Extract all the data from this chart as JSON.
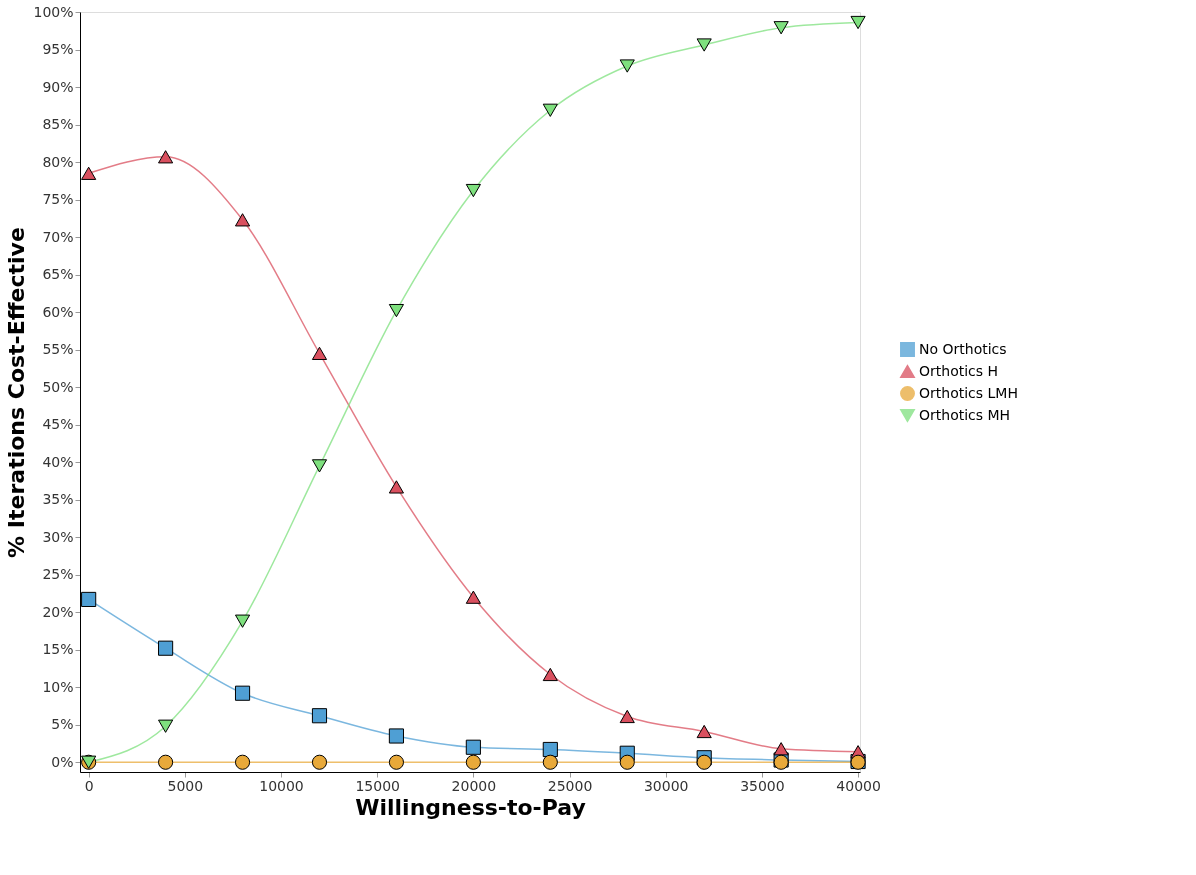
{
  "chart_data": {
    "type": "line",
    "xlabel": "Willingness-to-Pay",
    "ylabel": "% Iterations Cost-Effective",
    "x": [
      0,
      4000,
      8000,
      12000,
      16000,
      20000,
      24000,
      28000,
      32000,
      36000,
      40000
    ],
    "series": [
      {
        "name": "No Orthotics",
        "color": "#4f9fd4",
        "marker": "square",
        "values": [
          21.7,
          15.2,
          9.2,
          6.2,
          3.5,
          2.0,
          1.7,
          1.2,
          0.6,
          0.3,
          0.1
        ]
      },
      {
        "name": "Orthotics H",
        "color": "#d9505f",
        "marker": "triangle",
        "values": [
          78.5,
          80.7,
          72.3,
          54.5,
          36.7,
          22.0,
          11.7,
          6.1,
          4.1,
          1.8,
          1.4
        ]
      },
      {
        "name": "Orthotics LMH",
        "color": "#e8a93a",
        "marker": "circle",
        "values": [
          0,
          0,
          0,
          0,
          0,
          0,
          0,
          0,
          0,
          0,
          0
        ]
      },
      {
        "name": "Orthotics MH",
        "color": "#7ee07e",
        "marker": "triangle-down",
        "values": [
          0,
          4.8,
          18.8,
          39.5,
          60.2,
          76.2,
          86.9,
          92.8,
          95.6,
          97.9,
          98.6
        ]
      }
    ],
    "xlim": [
      -450,
      40100
    ],
    "xticks": [
      0,
      5000,
      10000,
      15000,
      20000,
      25000,
      30000,
      35000,
      40000
    ],
    "ylim": [
      -1.3,
      100
    ],
    "yticks": [
      {
        "value": 0,
        "label": "0%"
      },
      {
        "value": 5,
        "label": "5%"
      },
      {
        "value": 10,
        "label": "10%"
      },
      {
        "value": 15,
        "label": "15%"
      },
      {
        "value": 20,
        "label": "20%"
      },
      {
        "value": 25,
        "label": "25%"
      },
      {
        "value": 30,
        "label": "30%"
      },
      {
        "value": 35,
        "label": "35%"
      },
      {
        "value": 40,
        "label": "40%"
      },
      {
        "value": 45,
        "label": "45%"
      },
      {
        "value": 50,
        "label": "50%"
      },
      {
        "value": 55,
        "label": "55%"
      },
      {
        "value": 60,
        "label": "60%"
      },
      {
        "value": 65,
        "label": "65%"
      },
      {
        "value": 70,
        "label": "70%"
      },
      {
        "value": 75,
        "label": "75%"
      },
      {
        "value": 80,
        "label": "80%"
      },
      {
        "value": 85,
        "label": "85%"
      },
      {
        "value": 90,
        "label": "90%"
      },
      {
        "value": 95,
        "label": "95%"
      },
      {
        "value": 100,
        "label": "100%"
      }
    ],
    "grid": false,
    "legend": "right",
    "line_style": "solid"
  }
}
